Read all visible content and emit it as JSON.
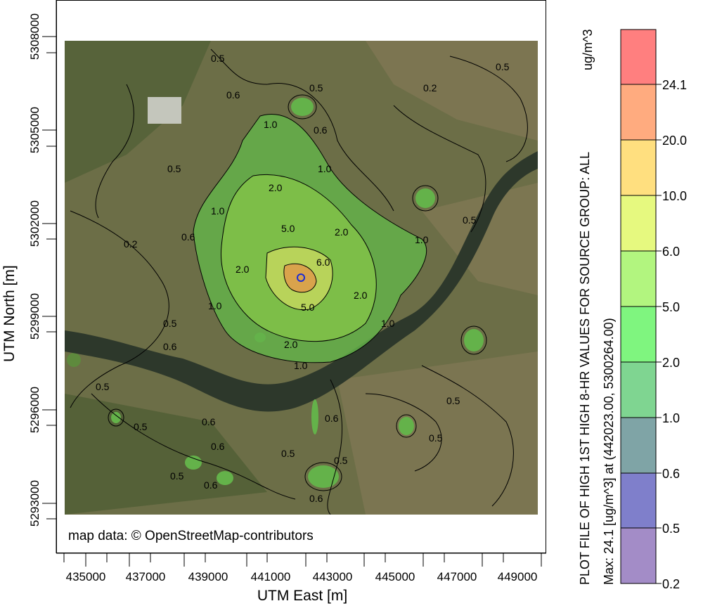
{
  "attribution": "map data: © OpenStreetMap-contributors",
  "x_axis": {
    "title": "UTM East [m]",
    "ticks": [
      "435000",
      "437000",
      "439000",
      "441000",
      "443000",
      "445000",
      "447000",
      "449000"
    ]
  },
  "y_axis": {
    "title": "UTM North [m]",
    "ticks": [
      "5308000",
      "5305000",
      "5302000",
      "5299000",
      "5296000",
      "5293000"
    ]
  },
  "colorbar": {
    "title": "PLOT FILE OF HIGH 1ST HIGH 8-HR VALUES FOR SOURCE GROUP: ALL",
    "max_text": "Max:  24.1  [ug/m^3]  at  (442023.00, 5300264.00)",
    "units": "ug/m^3",
    "levels": [
      {
        "label": "24.1",
        "color": "#ff7f7f"
      },
      {
        "label": "20.0",
        "color": "#ffab7f"
      },
      {
        "label": "10.0",
        "color": "#ffdf7f"
      },
      {
        "label": "6.0",
        "color": "#e6f97f"
      },
      {
        "label": "5.0",
        "color": "#b2f57f"
      },
      {
        "label": "2.0",
        "color": "#7ff57f"
      },
      {
        "label": "1.0",
        "color": "#7fd591"
      },
      {
        "label": "0.6",
        "color": "#7fa4a6"
      },
      {
        "label": "0.5",
        "color": "#7f7fcb"
      },
      {
        "label": "0.2",
        "color": "#a38cc7"
      }
    ]
  },
  "contour_labels": [
    "0.2",
    "0.5",
    "0.6",
    "1.0",
    "2.0",
    "5.0",
    "6.0"
  ],
  "colors": {
    "map_base": "#6f6b4a",
    "forest": "#4c5a33",
    "river": "#2f3a2d",
    "plume_outer": "#64b24a",
    "plume_mid": "#8ccf4c",
    "plume_inner": "#d3d56a",
    "plume_core": "#d9a34c"
  }
}
